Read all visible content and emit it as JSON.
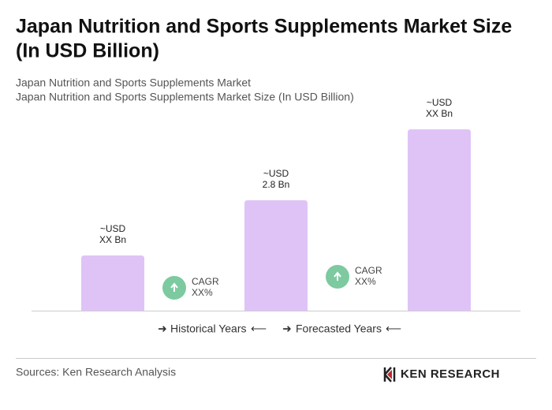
{
  "chart_data": {
    "type": "bar",
    "title": [
      "Japan Nutrition and Sports Supplements Market Size",
      "(In USD Billion)"
    ],
    "subtitle": [
      "Japan Nutrition and Sports Supplements Market",
      "Japan Nutrition and Sports Supplements Market Size (In USD Billion)"
    ],
    "categories": [
      null,
      null,
      null
    ],
    "values": [
      1.4,
      2.8,
      4.6
    ],
    "value_labels": [
      [
        "~USD",
        "XX Bn"
      ],
      [
        "~USD",
        "2.8 Bn"
      ],
      [
        "~USD",
        "XX Bn"
      ]
    ],
    "color": "#dfc3f6",
    "annotations": [
      [
        "CAGR",
        "XX%"
      ],
      [
        "CAGR",
        "XX%"
      ]
    ],
    "annotation_color": "#7dcaa0",
    "periods": [
      "Historical Years",
      "Forecasted Years"
    ],
    "source": "Sources: Ken Research Analysis",
    "logo": "KEN RESEARCH"
  }
}
